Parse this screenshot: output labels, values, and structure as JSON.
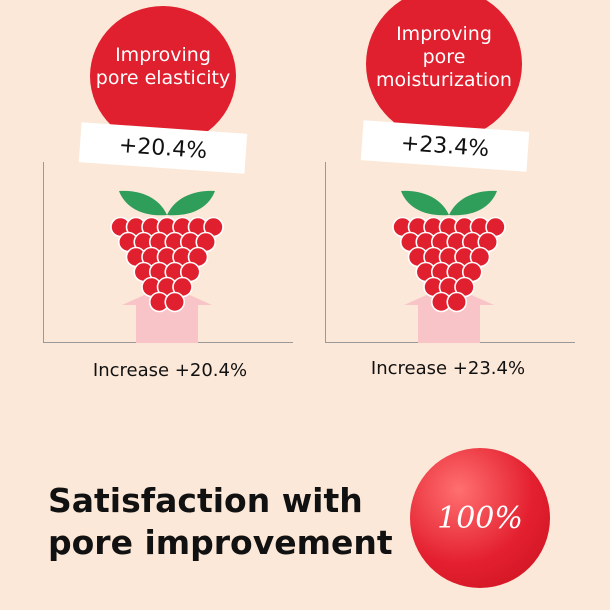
{
  "panels": [
    {
      "title": "Improving pore elasticity",
      "title_lines": [
        "Improving",
        "pore elasticity"
      ],
      "value": "+20.4%",
      "caption": "Increase +20.4%"
    },
    {
      "title": "Improving pore moisturization",
      "title_lines": [
        "Improving",
        "pore",
        "moisturization"
      ],
      "value": "+23.4%",
      "caption": "Increase +23.4%"
    }
  ],
  "summary": {
    "headline_lines": [
      "Satisfaction with",
      "pore improvement"
    ],
    "value": "100%"
  },
  "colors": {
    "background": "#fce8d8",
    "accent_red": "#e0202e",
    "leaf_green": "#2e9e5a",
    "arrow_pink": "#f8c4c8"
  }
}
